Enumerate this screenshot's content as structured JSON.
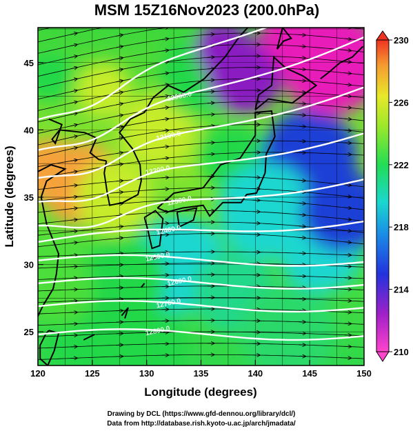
{
  "figure": {
    "title": "MSM 15Z16Nov2023 (200.0hPa)",
    "xlabel": "Longitude (degrees)",
    "ylabel": "Latitude  (degrees)",
    "credit_line1": "Drawing by DCL (https://www.gfd-dennou.org/library/dcl/)",
    "credit_line2": "Data from http://database.rish.kyoto-u.ac.jp/arch/jmadata/"
  },
  "map": {
    "lon_range": [
      120,
      150
    ],
    "lat_range": [
      22.5,
      47.6
    ],
    "x_ticks": [
      "120",
      "125",
      "130",
      "135",
      "140",
      "145",
      "150"
    ],
    "y_ticks": [
      "25",
      "30",
      "35",
      "40",
      "45"
    ],
    "fill_variable_range": [
      210,
      230
    ],
    "colorbar_ticks": [
      "230",
      "226",
      "222",
      "218",
      "214",
      "210"
    ],
    "colors": {
      "warm": "#f5a23a",
      "yellow_green": "#c6ec2a",
      "green": "#24d84a",
      "cyan": "#1ad7cf",
      "blue": "#1c3fd6",
      "purple": "#8a1fc2",
      "magenta": "#e81fb8",
      "contour": "#ffffff",
      "streamline": "#000000"
    },
    "contour_labels": [
      "12000.0",
      "12100.0",
      "12200.0",
      "12300.0",
      "12400.0",
      "12500.0",
      "12600.0",
      "12700.0",
      "12800.0"
    ]
  }
}
